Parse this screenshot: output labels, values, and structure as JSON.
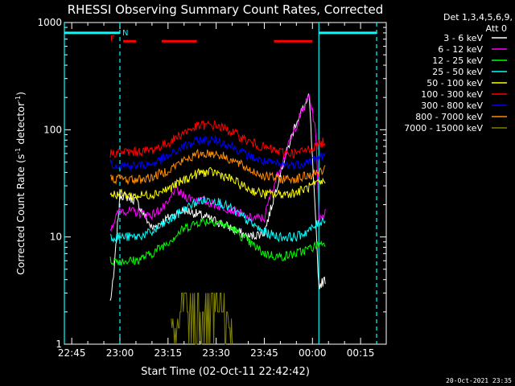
{
  "chart_data": {
    "type": "line",
    "title": "RHESSI Observing Summary Count Rates, Corrected",
    "xlabel": "Start Time (02-Oct-11 22:42:42)",
    "ylabel": "Corrected Count Rate (s⁻¹ detector⁻¹)",
    "ylabel_main": "Corrected Count Rate (s",
    "ylabel_sup1": "-1",
    "ylabel_mid": " detector",
    "ylabel_sup2": "-1",
    "ylabel_end": ")",
    "yscale": "log",
    "ylim": [
      1,
      1000
    ],
    "xlim": [
      "22:42:42",
      "00:23:00"
    ],
    "x_tick_labels": [
      "22:45",
      "23:00",
      "23:15",
      "23:30",
      "23:45",
      "00:00",
      "00:15"
    ],
    "y_tick_labels": [
      "1",
      "10",
      "100",
      "1000"
    ],
    "legend_header_1": "Det 1,3,4,5,6,9,",
    "legend_header_2": "Att 0",
    "legend_position": "top-right",
    "annotations": {
      "flag_f": "F",
      "flag_n": "N"
    },
    "footer_date": "20-Oct-2021 23:35",
    "series": [
      {
        "name": "3 - 6 keV",
        "color": "#ffffff",
        "x": [
          "22:57",
          "22:58",
          "23:00",
          "23:05",
          "23:10",
          "23:15",
          "23:20",
          "23:25",
          "23:30",
          "23:35",
          "23:40",
          "23:45",
          "23:47",
          "23:50",
          "23:55",
          "23:59",
          "00:02",
          "00:04"
        ],
        "values": [
          2.5,
          4,
          25,
          22,
          12,
          15,
          18,
          16,
          14,
          12,
          10,
          11,
          18,
          40,
          120,
          200,
          3.5,
          4
        ]
      },
      {
        "name": "6 - 12 keV",
        "color": "#ff00ff",
        "x": [
          "22:57",
          "23:00",
          "23:05",
          "23:10",
          "23:15",
          "23:17",
          "23:20",
          "23:25",
          "23:30",
          "23:35",
          "23:40",
          "23:45",
          "23:47",
          "23:50",
          "23:55",
          "23:59",
          "00:01",
          "00:02",
          "00:04"
        ],
        "values": [
          12,
          18,
          17,
          16,
          20,
          28,
          24,
          22,
          20,
          18,
          15,
          15,
          25,
          45,
          110,
          210,
          100,
          15,
          17
        ]
      },
      {
        "name": "12 - 25 keV",
        "color": "#00ff00",
        "x": [
          "22:57",
          "23:00",
          "23:05",
          "23:10",
          "23:15",
          "23:20",
          "23:25",
          "23:30",
          "23:35",
          "23:40",
          "23:45",
          "23:50",
          "23:55",
          "00:00",
          "00:04"
        ],
        "values": [
          6,
          6,
          6,
          7,
          9,
          12,
          14,
          14,
          12,
          9,
          7,
          6.5,
          7,
          8,
          9
        ]
      },
      {
        "name": "25 - 50 keV",
        "color": "#00ffff",
        "x": [
          "22:57",
          "23:00",
          "23:05",
          "23:10",
          "23:15",
          "23:20",
          "23:25",
          "23:30",
          "23:35",
          "23:40",
          "23:45",
          "23:50",
          "23:55",
          "00:00",
          "00:04"
        ],
        "values": [
          10,
          10,
          10,
          11,
          14,
          18,
          22,
          22,
          18,
          14,
          11,
          10,
          10,
          12,
          15
        ]
      },
      {
        "name": "50 - 100 keV",
        "color": "#ffff00",
        "x": [
          "22:57",
          "23:00",
          "23:05",
          "23:10",
          "23:15",
          "23:20",
          "23:25",
          "23:30",
          "23:35",
          "23:40",
          "23:45",
          "23:50",
          "23:55",
          "00:00",
          "00:04"
        ],
        "values": [
          25,
          25,
          24,
          25,
          28,
          34,
          40,
          40,
          34,
          28,
          25,
          25,
          26,
          30,
          33
        ]
      },
      {
        "name": "100 - 300 keV",
        "color": "#ff0000",
        "x": [
          "22:57",
          "23:00",
          "23:05",
          "23:10",
          "23:15",
          "23:20",
          "23:25",
          "23:30",
          "23:35",
          "23:40",
          "23:45",
          "23:50",
          "23:55",
          "00:00",
          "00:04"
        ],
        "values": [
          60,
          62,
          62,
          65,
          75,
          95,
          110,
          110,
          95,
          78,
          68,
          62,
          60,
          68,
          78
        ]
      },
      {
        "name": "300 - 800 keV",
        "color": "#0000ff",
        "x": [
          "22:57",
          "23:00",
          "23:05",
          "23:10",
          "23:15",
          "23:20",
          "23:25",
          "23:30",
          "23:35",
          "23:40",
          "23:45",
          "23:50",
          "23:55",
          "00:00",
          "00:04"
        ],
        "values": [
          48,
          47,
          46,
          48,
          56,
          70,
          80,
          80,
          70,
          57,
          50,
          47,
          47,
          52,
          58
        ]
      },
      {
        "name": "800 - 7000 keV",
        "color": "#ff8c00",
        "x": [
          "22:57",
          "23:00",
          "23:05",
          "23:10",
          "23:15",
          "23:20",
          "23:25",
          "23:30",
          "23:35",
          "23:40",
          "23:45",
          "23:50",
          "23:55",
          "00:00",
          "00:04"
        ],
        "values": [
          35,
          35,
          34,
          36,
          42,
          52,
          60,
          60,
          52,
          43,
          37,
          35,
          35,
          38,
          42
        ]
      },
      {
        "name": "7000 - 15000 keV",
        "color": "#808000",
        "x": [
          "23:16",
          "23:20",
          "23:23",
          "23:25",
          "23:27",
          "23:30",
          "23:33",
          "23:35"
        ],
        "values": [
          1,
          2,
          3,
          2.5,
          3,
          2,
          2,
          1
        ]
      }
    ],
    "flag_bars": [
      {
        "color": "#00ffff",
        "start": "22:42:42",
        "end": "23:00:00",
        "value": 800
      },
      {
        "color": "#00ffff",
        "start": "00:02:00",
        "end": "00:20:00",
        "value": 800
      },
      {
        "color": "#ff0000",
        "start": "23:01:00",
        "end": "23:05:00",
        "value": 670
      },
      {
        "color": "#ff0000",
        "start": "23:13:00",
        "end": "23:24:00",
        "value": 670
      },
      {
        "color": "#ff0000",
        "start": "23:48:00",
        "end": "00:00:00",
        "value": 670
      }
    ],
    "vertical_markers": [
      {
        "time": "22:42:42",
        "style": "solid"
      },
      {
        "time": "23:00:00",
        "style": "dashed"
      },
      {
        "time": "00:02:00",
        "style": "solid"
      },
      {
        "time": "00:20:00",
        "style": "dashed"
      }
    ]
  }
}
